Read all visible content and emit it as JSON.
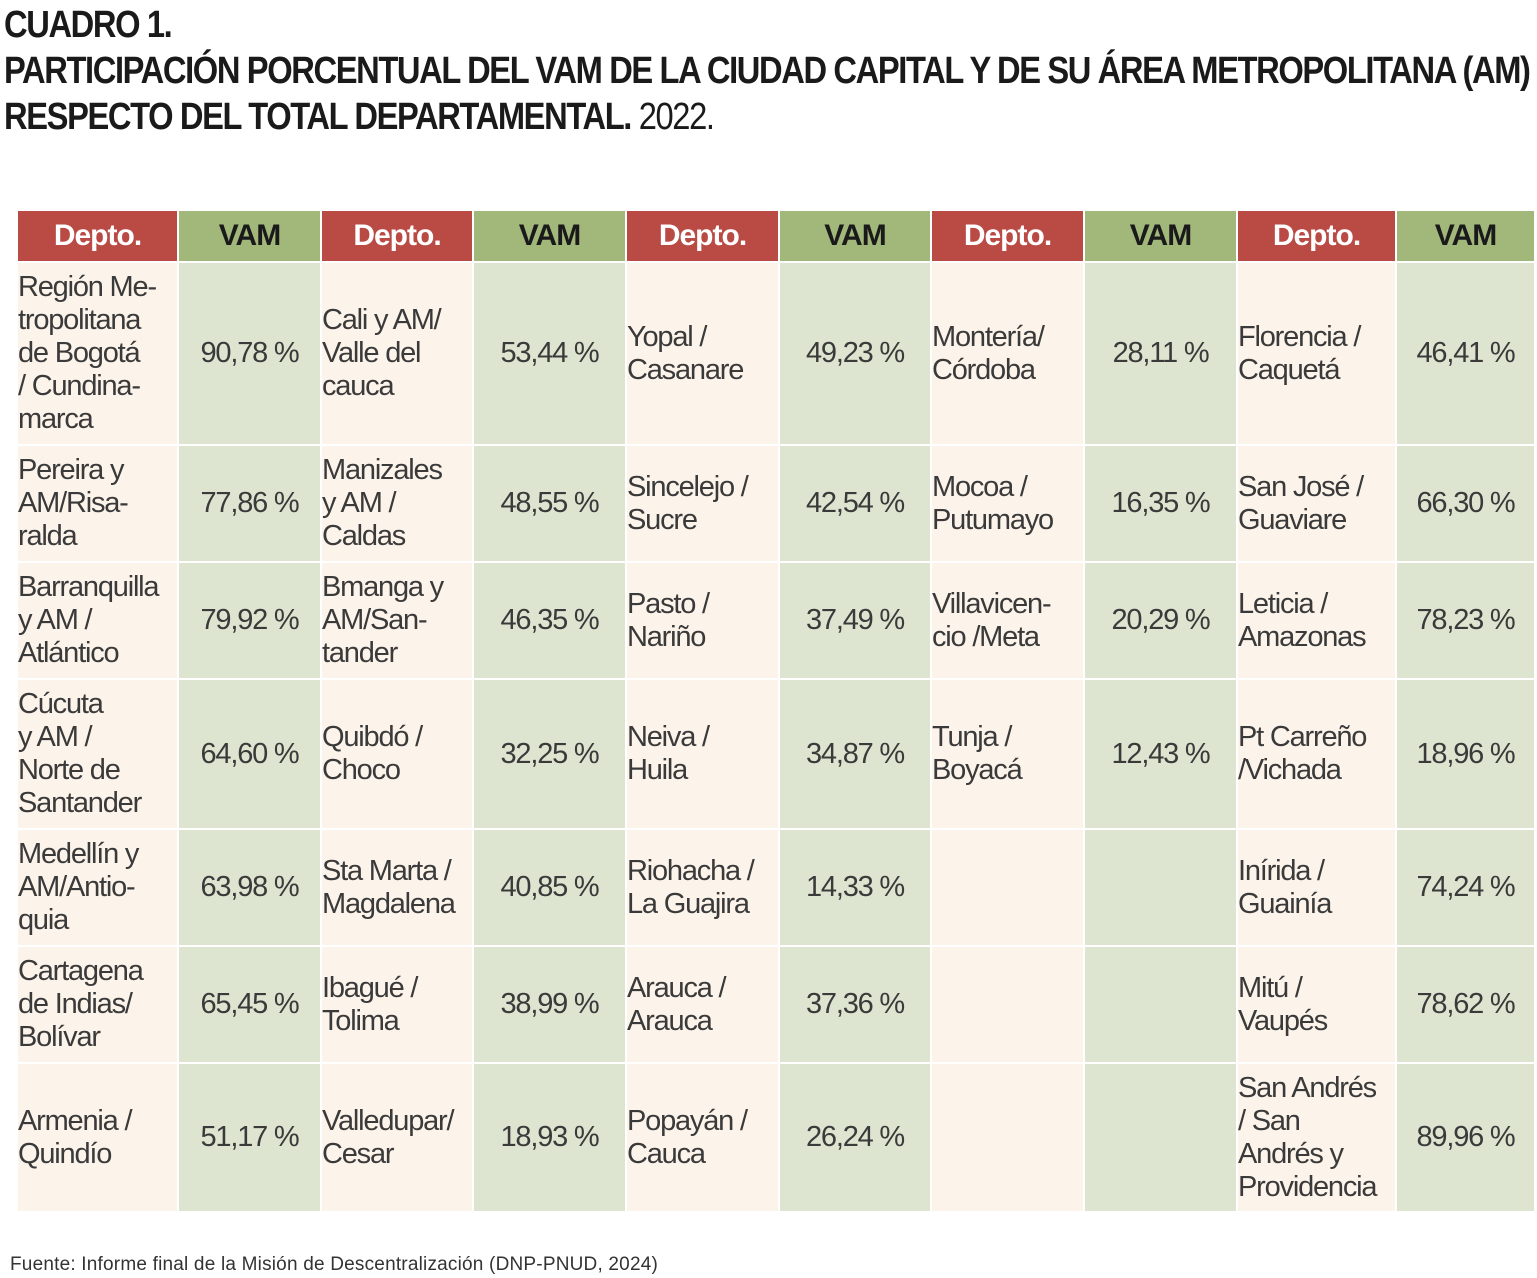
{
  "title": {
    "line1": "CUADRO 1.",
    "line2": "PARTICIPACIÓN PORCENTUAL DEL VAM DE LA CIUDAD CAPITAL Y DE SU ÁREA METROPOLITANA (AM)",
    "line3": "RESPECTO DEL TOTAL DEPARTAMENTAL.",
    "year": "2022."
  },
  "table": {
    "headers": [
      "Depto.",
      "VAM",
      "Depto.",
      "VAM",
      "Depto.",
      "VAM",
      "Depto.",
      "VAM",
      "Depto.",
      "VAM"
    ],
    "rows": [
      [
        [
          "Región Me-",
          "tropolitana",
          "de Bogotá",
          "/ Cundina-",
          "marca"
        ],
        "90,78 %",
        [
          "Cali y AM/",
          "Valle del",
          "cauca"
        ],
        "53,44 %",
        [
          "Yopal /",
          "Casanare"
        ],
        "49,23 %",
        [
          "Montería/",
          "Córdoba"
        ],
        "28,11 %",
        [
          "Florencia /",
          "Caquetá"
        ],
        "46,41 %"
      ],
      [
        [
          "Pereira y",
          "AM/Risa-",
          "ralda"
        ],
        "77,86 %",
        [
          "Manizales",
          "y AM /",
          "Caldas"
        ],
        "48,55 %",
        [
          "Sincelejo /",
          "Sucre"
        ],
        "42,54 %",
        [
          "Mocoa /",
          "Putumayo"
        ],
        "16,35 %",
        [
          "San José /",
          "Guaviare"
        ],
        "66,30 %"
      ],
      [
        [
          "Barranquilla",
          "y AM /",
          "Atlántico"
        ],
        "79,92 %",
        [
          "Bmanga y",
          "AM/San-",
          "tander"
        ],
        "46,35 %",
        [
          "Pasto /",
          "Nariño"
        ],
        "37,49 %",
        [
          "Villavicen-",
          "cio /Meta"
        ],
        "20,29 %",
        [
          "Leticia /",
          "Amazonas"
        ],
        "78,23 %"
      ],
      [
        [
          "Cúcuta",
          "y AM /",
          "Norte de",
          "Santander"
        ],
        "64,60 %",
        [
          "Quibdó /",
          "Choco"
        ],
        "32,25 %",
        [
          "Neiva /",
          "Huila"
        ],
        "34,87 %",
        [
          "Tunja /",
          "Boyacá"
        ],
        "12,43 %",
        [
          "Pt Carreño",
          "/Vichada"
        ],
        "18,96 %"
      ],
      [
        [
          "Medellín y",
          "AM/Antio-",
          "quia"
        ],
        "63,98 %",
        [
          "Sta Marta /",
          "Magdalena"
        ],
        "40,85 %",
        [
          "Riohacha /",
          "La Guajira"
        ],
        "14,33 %",
        [
          ""
        ],
        "",
        [
          "Inírida /",
          "Guainía"
        ],
        "74,24 %"
      ],
      [
        [
          "Cartagena",
          "de Indias/",
          "Bolívar"
        ],
        "65,45 %",
        [
          "Ibagué /",
          "Tolima"
        ],
        "38,99 %",
        [
          "Arauca /",
          "Arauca"
        ],
        "37,36 %",
        [
          ""
        ],
        "",
        [
          "Mitú /",
          "Vaupés"
        ],
        "78,62 %"
      ],
      [
        [
          "Armenia /",
          "Quindío"
        ],
        "51,17 %",
        [
          "Valledupar/",
          "Cesar"
        ],
        "18,93 %",
        [
          "Popayán /",
          "Cauca"
        ],
        "26,24 %",
        [
          ""
        ],
        "",
        [
          "San Andrés",
          "/ San",
          "Andrés y",
          "Providencia"
        ],
        "89,96 %"
      ]
    ]
  },
  "source": "Fuente: Informe final de la Misión de Descentralización (DNP-PNUD, 2024)"
}
